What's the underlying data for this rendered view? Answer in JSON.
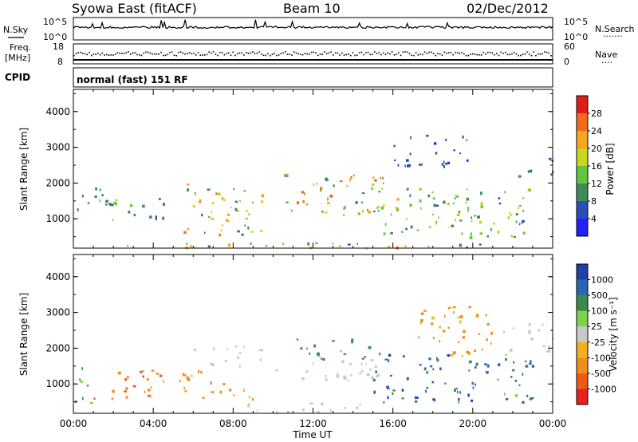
{
  "header": {
    "station": "Syowa East (fitACF)",
    "beam": "Beam 10",
    "date": "02/Dec/2012"
  },
  "left_labels": {
    "nsky": "N.Sky",
    "freq": "Freq.",
    "freq_unit": "[MHz]",
    "cpid": "CPID"
  },
  "right_labels": {
    "nsearch": "N.Search",
    "nsearch_dots": "·······",
    "nave": "Nave",
    "nave_dots": "····"
  },
  "top_panels": {
    "noise_ticks_left": [
      "10^5",
      "10^0"
    ],
    "noise_ticks_right": [
      "10^5",
      "10^0"
    ],
    "freq_ticks_left": [
      "18",
      "8"
    ],
    "nave_ticks_right": [
      "60",
      "0"
    ],
    "cpid_label": "normal (fast) 151 RF"
  },
  "colors": {
    "power": [
      "#1f1fff",
      "#2a4fb4",
      "#3c8c5a",
      "#63c53a",
      "#c8d81f",
      "#f5a623",
      "#f26b1d",
      "#e11b1b"
    ],
    "velocity": [
      "#e8201e",
      "#ee5a16",
      "#f08f1e",
      "#f2b020",
      "#c8c8c8",
      "#7fd14a",
      "#3b8a4a",
      "#2a66b2",
      "#223fa8"
    ]
  },
  "chart_data": [
    {
      "type": "heatmap",
      "name": "power",
      "ylabel": "Slant Range [km]",
      "yticks": [
        "1000",
        "2000",
        "3000",
        "4000"
      ],
      "ylim": [
        180,
        4620
      ],
      "xlim": [
        0,
        24
      ],
      "colorbar_label": "Power [dB]",
      "colorbar_ticks": [
        "4",
        "8",
        "12",
        "16",
        "20",
        "24",
        "28"
      ],
      "colorbar_range": [
        0,
        32
      ],
      "regions": [
        {
          "x": [
            0.0,
            24.0
          ],
          "y": [
            200,
            350
          ],
          "v": [
            4,
            28
          ]
        },
        {
          "x": [
            0.0,
            2.0
          ],
          "y": [
            1200,
            1900
          ],
          "v": [
            4,
            14
          ]
        },
        {
          "x": [
            1.0,
            4.5
          ],
          "y": [
            900,
            1600
          ],
          "v": [
            6,
            18
          ]
        },
        {
          "x": [
            5.5,
            9.5
          ],
          "y": [
            500,
            2000
          ],
          "v": [
            8,
            26
          ]
        },
        {
          "x": [
            6.5,
            8.0
          ],
          "y": [
            900,
            1200
          ],
          "v": [
            16,
            28
          ]
        },
        {
          "x": [
            10.5,
            15.5
          ],
          "y": [
            1100,
            2300
          ],
          "v": [
            8,
            28
          ]
        },
        {
          "x": [
            12.0,
            13.5
          ],
          "y": [
            1800,
            2200
          ],
          "v": [
            20,
            28
          ]
        },
        {
          "x": [
            15.0,
            23.0
          ],
          "y": [
            500,
            1900
          ],
          "v": [
            6,
            22
          ]
        },
        {
          "x": [
            18.0,
            20.5
          ],
          "y": [
            900,
            1500
          ],
          "v": [
            12,
            24
          ]
        },
        {
          "x": [
            16.0,
            20.0
          ],
          "y": [
            2500,
            3400
          ],
          "v": [
            2,
            8
          ]
        },
        {
          "x": [
            22.0,
            24.0
          ],
          "y": [
            2200,
            2800
          ],
          "v": [
            2,
            10
          ]
        }
      ]
    },
    {
      "type": "heatmap",
      "name": "velocity",
      "ylabel": "Slant Range [km]",
      "yticks": [
        "1000",
        "2000",
        "3000",
        "4000"
      ],
      "ylim": [
        180,
        4620
      ],
      "xlim": [
        0,
        24
      ],
      "xlabel": "Time UT",
      "xticks": [
        "00:00",
        "04:00",
        "08:00",
        "12:00",
        "16:00",
        "20:00",
        "00:00"
      ],
      "colorbar_label": "Velocity [m s⁻¹]",
      "colorbar_ticks": [
        "1000",
        "500",
        "100",
        "25",
        "-25",
        "-100",
        "-500",
        "-1000"
      ],
      "colorbar_range": [
        -1250,
        1250
      ],
      "regions": [
        {
          "x": [
            0.0,
            1.0
          ],
          "y": [
            400,
            1600
          ],
          "v": [
            20,
            200
          ]
        },
        {
          "x": [
            1.0,
            4.5
          ],
          "y": [
            600,
            1500
          ],
          "v": [
            -900,
            -300
          ]
        },
        {
          "x": [
            5.0,
            9.0
          ],
          "y": [
            600,
            1400
          ],
          "v": [
            -300,
            -150
          ]
        },
        {
          "x": [
            6.0,
            9.5
          ],
          "y": [
            1500,
            2100
          ],
          "v": [
            -20,
            20
          ]
        },
        {
          "x": [
            8.5,
            14.5
          ],
          "y": [
            200,
            500
          ],
          "v": [
            -20,
            20
          ]
        },
        {
          "x": [
            11.0,
            15.0
          ],
          "y": [
            1700,
            2300
          ],
          "v": [
            50,
            300
          ]
        },
        {
          "x": [
            10.0,
            16.0
          ],
          "y": [
            1100,
            1700
          ],
          "v": [
            -20,
            20
          ]
        },
        {
          "x": [
            15.0,
            23.0
          ],
          "y": [
            500,
            1900
          ],
          "v": [
            50,
            1100
          ]
        },
        {
          "x": [
            21.5,
            24.0
          ],
          "y": [
            1900,
            2700
          ],
          "v": [
            -20,
            20
          ]
        },
        {
          "x": [
            17.0,
            21.0
          ],
          "y": [
            1800,
            3200
          ],
          "v": [
            -300,
            -60
          ]
        }
      ]
    }
  ]
}
